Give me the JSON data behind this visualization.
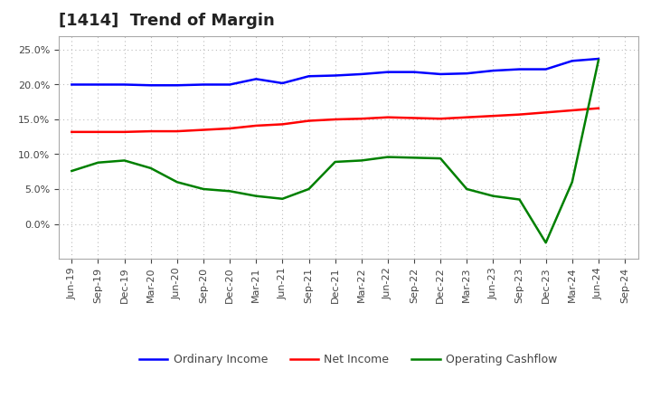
{
  "title": "[1414]  Trend of Margin",
  "xlabels": [
    "Jun-19",
    "Sep-19",
    "Dec-19",
    "Mar-20",
    "Jun-20",
    "Sep-20",
    "Dec-20",
    "Mar-21",
    "Jun-21",
    "Sep-21",
    "Dec-21",
    "Mar-22",
    "Jun-22",
    "Sep-22",
    "Dec-22",
    "Mar-23",
    "Jun-23",
    "Sep-23",
    "Dec-23",
    "Mar-24",
    "Jun-24",
    "Sep-24"
  ],
  "ordinary_income": [
    0.2,
    0.2,
    0.2,
    0.199,
    0.199,
    0.2,
    0.2,
    0.208,
    0.202,
    0.212,
    0.213,
    0.215,
    0.218,
    0.218,
    0.215,
    0.216,
    0.22,
    0.222,
    0.222,
    0.234,
    0.237,
    null
  ],
  "net_income": [
    0.132,
    0.132,
    0.132,
    0.133,
    0.133,
    0.135,
    0.137,
    0.141,
    0.143,
    0.148,
    0.15,
    0.151,
    0.153,
    0.152,
    0.151,
    0.153,
    0.155,
    0.157,
    0.16,
    0.163,
    0.166,
    null
  ],
  "operating_cashflow": [
    0.076,
    0.088,
    0.091,
    0.08,
    0.06,
    0.05,
    0.047,
    0.04,
    0.036,
    0.05,
    0.089,
    0.091,
    0.096,
    0.095,
    0.094,
    0.05,
    0.04,
    0.035,
    -0.027,
    0.06,
    0.235,
    null
  ],
  "ylim": [
    -0.05,
    0.27
  ],
  "yticks": [
    0.0,
    0.05,
    0.1,
    0.15,
    0.2,
    0.25
  ],
  "line_color_oi": "#0000FF",
  "line_color_ni": "#FF0000",
  "line_color_ocf": "#008000",
  "bg_color": "#FFFFFF",
  "grid_color": "#BBBBBB",
  "title_fontsize": 13,
  "legend_fontsize": 9,
  "axis_fontsize": 8
}
